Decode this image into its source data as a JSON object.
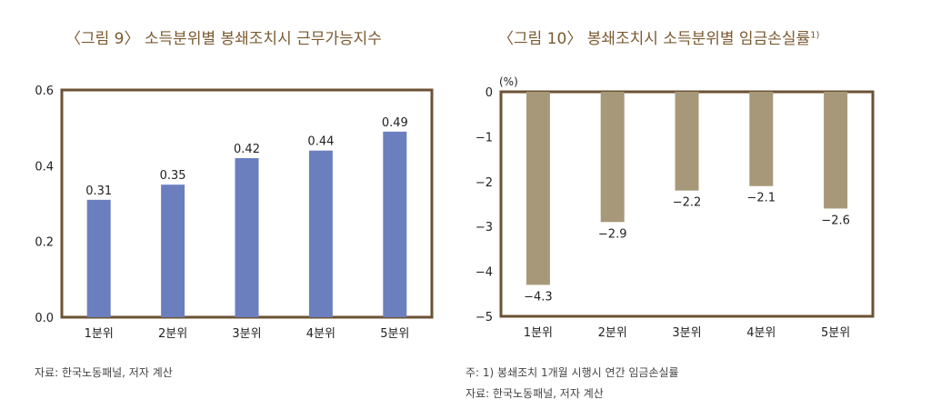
{
  "charts": [
    {
      "title": "〈그림 9〉 소득분위별 봉쇄조치시 근무가능지수",
      "note_lines": [
        "자료: 한국노동패널, 저자 계산"
      ]
    },
    {
      "title": "〈그림 10〉 봉쇄조치시 소득분위별 임금손실률",
      "title_sup": "1)",
      "unit": "(%)",
      "note_lines": [
        "주: 1) 봉쇄조치 1개월 시행시 연간 임금손실률",
        "자료: 한국노동패널, 저자 계산"
      ]
    }
  ],
  "colors": {
    "frame": "#6b5233",
    "bar_left": "#6b7fbf",
    "bar_right": "#a8987a",
    "title": "#7a5a30"
  },
  "chart_data": [
    {
      "type": "bar",
      "title": "〈그림 9〉 소득분위별 봉쇄조치시 근무가능지수",
      "categories": [
        "1분위",
        "2분위",
        "3분위",
        "4분위",
        "5분위"
      ],
      "values": [
        0.31,
        0.35,
        0.42,
        0.44,
        0.49
      ],
      "value_labels": [
        "0.31",
        "0.35",
        "0.42",
        "0.44",
        "0.49"
      ],
      "ylim": [
        0,
        0.6
      ],
      "yticks": [
        0.0,
        0.2,
        0.4,
        0.6
      ],
      "ytick_labels": [
        "0.0",
        "0.2",
        "0.4",
        "0.6"
      ],
      "grid": false
    },
    {
      "type": "bar",
      "title": "〈그림 10〉 봉쇄조치시 소득분위별 임금손실률",
      "ylabel": "(%)",
      "categories": [
        "1분위",
        "2분위",
        "3분위",
        "4분위",
        "5분위"
      ],
      "values": [
        -4.3,
        -2.9,
        -2.2,
        -2.1,
        -2.6
      ],
      "value_labels": [
        "−4.3",
        "−2.9",
        "−2.2",
        "−2.1",
        "−2.6"
      ],
      "ylim": [
        -5,
        0
      ],
      "yticks": [
        0,
        -1,
        -2,
        -3,
        -4,
        -5
      ],
      "ytick_labels": [
        "0",
        "−1",
        "−2",
        "−3",
        "−4",
        "−5"
      ],
      "grid": false
    }
  ]
}
